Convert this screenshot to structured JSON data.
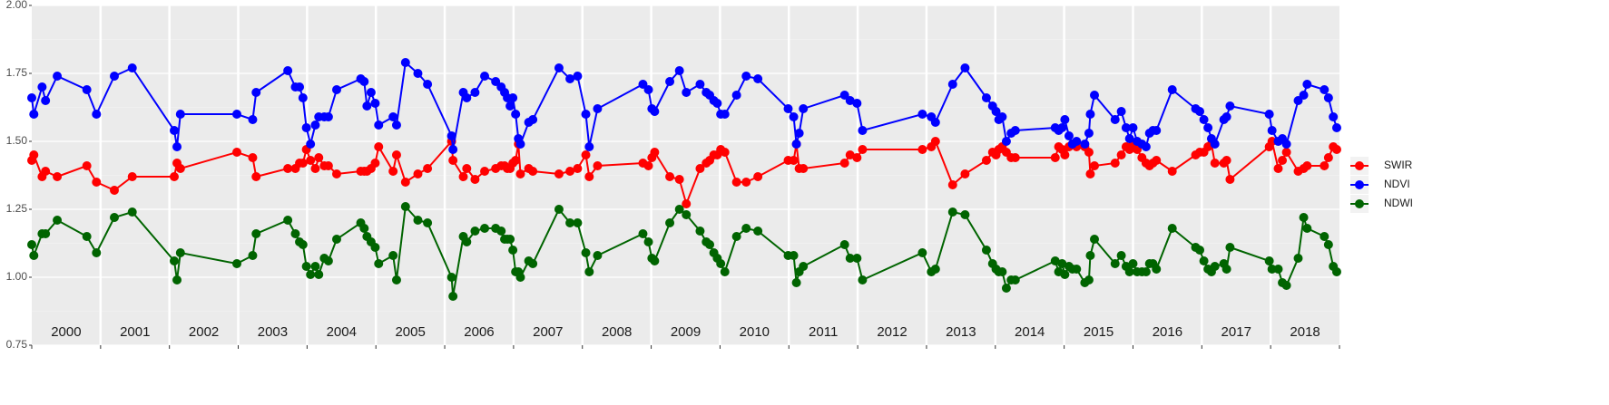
{
  "chart_data": {
    "type": "line",
    "xlim": [
      2000,
      2019
    ],
    "xticks": [
      2000,
      2001,
      2002,
      2003,
      2004,
      2005,
      2006,
      2007,
      2008,
      2009,
      2010,
      2011,
      2012,
      2013,
      2014,
      2015,
      2016,
      2017,
      2018,
      2019
    ],
    "years": [
      2000,
      2001,
      2002,
      2003,
      2004,
      2005,
      2006,
      2007,
      2008,
      2009,
      2010,
      2011,
      2012,
      2013,
      2014,
      2015,
      2016,
      2017,
      2018
    ],
    "ylim": [
      0.75,
      2.0
    ],
    "yticks": [
      {
        "value": 0.75,
        "label": "0.75"
      },
      {
        "value": 1.0,
        "label": "1.00"
      },
      {
        "value": 1.25,
        "label": "1.25"
      },
      {
        "value": 1.5,
        "label": "1.50"
      },
      {
        "value": 1.75,
        "label": "1.75"
      },
      {
        "value": 2.0,
        "label": "2.00"
      }
    ],
    "grid": true,
    "legend": "right",
    "x": [
      2000.0,
      2000.03,
      2000.15,
      2000.2,
      2000.37,
      2000.8,
      2000.94,
      2001.2,
      2001.46,
      2002.07,
      2002.11,
      2002.16,
      2002.98,
      2003.21,
      2003.26,
      2003.72,
      2003.83,
      2003.89,
      2003.94,
      2003.99,
      2004.05,
      2004.12,
      2004.17,
      2004.25,
      2004.31,
      2004.43,
      2004.78,
      2004.83,
      2004.87,
      2004.93,
      2004.99,
      2005.04,
      2005.25,
      2005.3,
      2005.43,
      2005.61,
      2005.75,
      2006.1,
      2006.12,
      2006.27,
      2006.32,
      2006.44,
      2006.58,
      2006.74,
      2006.82,
      2006.87,
      2006.91,
      2006.95,
      2006.99,
      2007.03,
      2007.07,
      2007.1,
      2007.22,
      2007.28,
      2007.66,
      2007.82,
      2007.93,
      2008.05,
      2008.1,
      2008.22,
      2008.88,
      2008.96,
      2009.01,
      2009.05,
      2009.27,
      2009.41,
      2009.51,
      2009.71,
      2009.8,
      2009.85,
      2009.91,
      2009.96,
      2010.01,
      2010.07,
      2010.24,
      2010.38,
      2010.55,
      2010.99,
      2011.07,
      2011.11,
      2011.15,
      2011.21,
      2011.81,
      2011.89,
      2011.99,
      2012.07,
      2012.94,
      2013.07,
      2013.13,
      2013.38,
      2013.56,
      2013.87,
      2013.96,
      2014.01,
      2014.05,
      2014.1,
      2014.16,
      2014.23,
      2014.29,
      2014.87,
      2014.92,
      2014.97,
      2015.01,
      2015.07,
      2015.12,
      2015.18,
      2015.3,
      2015.36,
      2015.38,
      2015.44,
      2015.74,
      2015.83,
      2015.9,
      2015.95,
      2016.0,
      2016.06,
      2016.13,
      2016.19,
      2016.24,
      2016.29,
      2016.34,
      2016.57,
      2016.91,
      2016.97,
      2017.03,
      2017.09,
      2017.14,
      2017.19,
      2017.32,
      2017.36,
      2017.41,
      2017.98,
      2018.02,
      2018.11,
      2018.17,
      2018.23,
      2018.4,
      2018.48,
      2018.53,
      2018.78,
      2018.84,
      2018.91,
      2018.96
    ],
    "series": [
      {
        "name": "SWIR",
        "color": "#ff0000",
        "values": [
          1.43,
          1.45,
          1.37,
          1.39,
          1.37,
          1.41,
          1.35,
          1.32,
          1.37,
          1.37,
          1.42,
          1.4,
          1.46,
          1.44,
          1.37,
          1.4,
          1.4,
          1.42,
          1.42,
          1.47,
          1.43,
          1.4,
          1.44,
          1.41,
          1.41,
          1.38,
          1.39,
          1.39,
          1.39,
          1.4,
          1.42,
          1.48,
          1.39,
          1.45,
          1.35,
          1.38,
          1.4,
          1.5,
          1.43,
          1.37,
          1.4,
          1.36,
          1.39,
          1.4,
          1.41,
          1.41,
          1.4,
          1.4,
          1.42,
          1.43,
          1.49,
          1.38,
          1.4,
          1.39,
          1.38,
          1.39,
          1.4,
          1.45,
          1.37,
          1.41,
          1.42,
          1.41,
          1.44,
          1.46,
          1.37,
          1.36,
          1.27,
          1.4,
          1.42,
          1.43,
          1.45,
          1.45,
          1.47,
          1.46,
          1.35,
          1.35,
          1.37,
          1.43,
          1.43,
          1.49,
          1.4,
          1.4,
          1.42,
          1.45,
          1.44,
          1.47,
          1.47,
          1.48,
          1.5,
          1.34,
          1.38,
          1.43,
          1.46,
          1.45,
          1.47,
          1.48,
          1.46,
          1.44,
          1.44,
          1.44,
          1.48,
          1.47,
          1.45,
          1.48,
          1.49,
          1.48,
          1.48,
          1.46,
          1.38,
          1.41,
          1.42,
          1.45,
          1.48,
          1.47,
          1.49,
          1.47,
          1.44,
          1.42,
          1.41,
          1.42,
          1.43,
          1.39,
          1.45,
          1.46,
          1.46,
          1.48,
          1.49,
          1.42,
          1.42,
          1.43,
          1.36,
          1.48,
          1.5,
          1.4,
          1.43,
          1.46,
          1.39,
          1.4,
          1.41,
          1.41,
          1.44,
          1.48,
          1.47
        ]
      },
      {
        "name": "NDVI",
        "color": "#0000ff",
        "values": [
          1.66,
          1.6,
          1.7,
          1.65,
          1.74,
          1.69,
          1.6,
          1.74,
          1.77,
          1.54,
          1.48,
          1.6,
          1.6,
          1.58,
          1.68,
          1.76,
          1.7,
          1.7,
          1.66,
          1.55,
          1.49,
          1.56,
          1.59,
          1.59,
          1.59,
          1.69,
          1.73,
          1.72,
          1.63,
          1.68,
          1.64,
          1.56,
          1.59,
          1.56,
          1.79,
          1.75,
          1.71,
          1.52,
          1.47,
          1.68,
          1.66,
          1.68,
          1.74,
          1.72,
          1.7,
          1.68,
          1.66,
          1.63,
          1.66,
          1.6,
          1.51,
          1.49,
          1.57,
          1.58,
          1.77,
          1.73,
          1.74,
          1.6,
          1.48,
          1.62,
          1.71,
          1.69,
          1.62,
          1.61,
          1.72,
          1.76,
          1.68,
          1.71,
          1.68,
          1.67,
          1.65,
          1.64,
          1.6,
          1.6,
          1.67,
          1.74,
          1.73,
          1.62,
          1.59,
          1.49,
          1.53,
          1.62,
          1.67,
          1.65,
          1.64,
          1.54,
          1.6,
          1.59,
          1.57,
          1.71,
          1.77,
          1.66,
          1.63,
          1.61,
          1.58,
          1.59,
          1.5,
          1.53,
          1.54,
          1.55,
          1.54,
          1.55,
          1.58,
          1.52,
          1.49,
          1.5,
          1.49,
          1.53,
          1.6,
          1.67,
          1.58,
          1.61,
          1.55,
          1.51,
          1.55,
          1.5,
          1.49,
          1.48,
          1.53,
          1.54,
          1.54,
          1.69,
          1.62,
          1.61,
          1.58,
          1.55,
          1.51,
          1.49,
          1.58,
          1.59,
          1.63,
          1.6,
          1.54,
          1.5,
          1.51,
          1.49,
          1.65,
          1.67,
          1.71,
          1.69,
          1.66,
          1.59,
          1.55
        ]
      },
      {
        "name": "NDWI",
        "color": "#006400",
        "values": [
          1.12,
          1.08,
          1.16,
          1.16,
          1.21,
          1.15,
          1.09,
          1.22,
          1.24,
          1.06,
          0.99,
          1.09,
          1.05,
          1.08,
          1.16,
          1.21,
          1.16,
          1.13,
          1.12,
          1.04,
          1.01,
          1.04,
          1.01,
          1.07,
          1.06,
          1.14,
          1.2,
          1.18,
          1.15,
          1.13,
          1.11,
          1.05,
          1.08,
          0.99,
          1.26,
          1.21,
          1.2,
          1.0,
          0.93,
          1.15,
          1.13,
          1.17,
          1.18,
          1.18,
          1.17,
          1.14,
          1.14,
          1.14,
          1.1,
          1.02,
          1.02,
          1.0,
          1.06,
          1.05,
          1.25,
          1.2,
          1.2,
          1.09,
          1.02,
          1.08,
          1.16,
          1.13,
          1.07,
          1.06,
          1.2,
          1.25,
          1.23,
          1.17,
          1.13,
          1.12,
          1.09,
          1.07,
          1.05,
          1.02,
          1.15,
          1.18,
          1.17,
          1.08,
          1.08,
          0.98,
          1.02,
          1.04,
          1.12,
          1.07,
          1.07,
          0.99,
          1.09,
          1.02,
          1.03,
          1.24,
          1.23,
          1.1,
          1.05,
          1.03,
          1.02,
          1.02,
          0.96,
          0.99,
          0.99,
          1.06,
          1.02,
          1.05,
          1.01,
          1.04,
          1.03,
          1.03,
          0.98,
          0.99,
          1.08,
          1.14,
          1.05,
          1.08,
          1.04,
          1.02,
          1.05,
          1.02,
          1.02,
          1.02,
          1.05,
          1.05,
          1.03,
          1.18,
          1.11,
          1.1,
          1.06,
          1.03,
          1.02,
          1.04,
          1.05,
          1.03,
          1.11,
          1.06,
          1.03,
          1.03,
          0.98,
          0.97,
          1.07,
          1.22,
          1.18,
          1.15,
          1.12,
          1.04,
          1.02
        ]
      }
    ]
  }
}
